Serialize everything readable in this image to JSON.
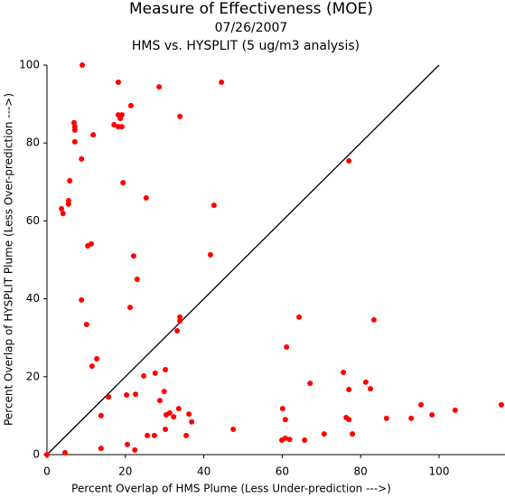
{
  "chart_data": {
    "type": "scatter",
    "title": "Measure of Effectiveness (MOE)",
    "subtitle": "07/26/2007",
    "annotation": "HMS vs. HYSPLIT  (5 ug/m3 analysis)",
    "x_label": "Percent Overlap of HMS Plume (Less Under-prediction --->)",
    "y_label": "Percent Overlap of HYSPLIT Plume (Less Over-prediction --->)",
    "color": "#ff0000",
    "xlim": [
      0,
      117
    ],
    "ylim": [
      0,
      100
    ],
    "xticks": [
      0,
      20,
      40,
      60,
      80,
      100
    ],
    "yticks": [
      0,
      20,
      40,
      60,
      80,
      100
    ],
    "x": [
      9.0,
      18.2,
      28.6,
      44.5,
      21.4,
      6.9,
      7.1,
      7.1,
      18.2,
      19.1,
      18.7,
      17.1,
      18.2,
      19.1,
      33.9,
      11.8,
      7.1,
      8.8,
      77.0,
      5.8,
      19.4,
      25.3,
      5.5,
      5.5,
      42.6,
      3.7,
      4.1,
      11.3,
      10.4,
      22.1,
      41.7,
      23.0,
      8.8,
      21.2,
      10.1,
      33.9,
      33.9,
      33.2,
      64.3,
      83.4,
      61.1,
      12.7,
      11.5,
      24.7,
      27.6,
      30.2,
      75.6,
      67.1,
      81.3,
      82.5,
      77.0,
      22.6,
      20.3,
      15.7,
      29.9,
      28.8,
      95.4,
      115.9,
      104.1,
      60.1,
      13.8,
      30.4,
      31.3,
      32.3,
      36.2,
      36.9,
      33.6,
      60.8,
      76.3,
      77.0,
      92.9,
      98.2,
      86.6,
      30.2,
      27.4,
      25.6,
      35.5,
      47.5,
      65.7,
      60.8,
      59.9,
      61.9,
      77.9,
      70.7,
      20.5,
      13.8,
      22.4,
      4.6,
      0
    ],
    "y": [
      100,
      95.6,
      94.4,
      95.6,
      89.6,
      85.2,
      84.2,
      83.3,
      87.2,
      87.2,
      86.3,
      84.7,
      84.2,
      84.2,
      86.8,
      82.1,
      80.3,
      75.9,
      75.4,
      70.3,
      69.8,
      65.9,
      65.2,
      64.3,
      64.0,
      63.1,
      61.9,
      54.1,
      53.6,
      51.0,
      51.3,
      45.0,
      39.7,
      37.8,
      33.4,
      35.3,
      34.3,
      31.8,
      35.3,
      34.6,
      27.6,
      24.6,
      22.7,
      20.2,
      20.9,
      21.8,
      21.1,
      18.3,
      18.6,
      16.9,
      16.7,
      15.5,
      15.3,
      14.8,
      16.2,
      13.9,
      12.8,
      12.8,
      11.4,
      11.8,
      10.0,
      10.2,
      10.7,
      9.7,
      10.4,
      8.4,
      11.8,
      9.0,
      9.5,
      9.0,
      9.3,
      10.2,
      9.3,
      6.5,
      4.9,
      4.9,
      4.9,
      6.5,
      3.7,
      4.2,
      3.7,
      3.9,
      5.3,
      5.3,
      2.6,
      1.6,
      1.2,
      0.5,
      0
    ]
  }
}
